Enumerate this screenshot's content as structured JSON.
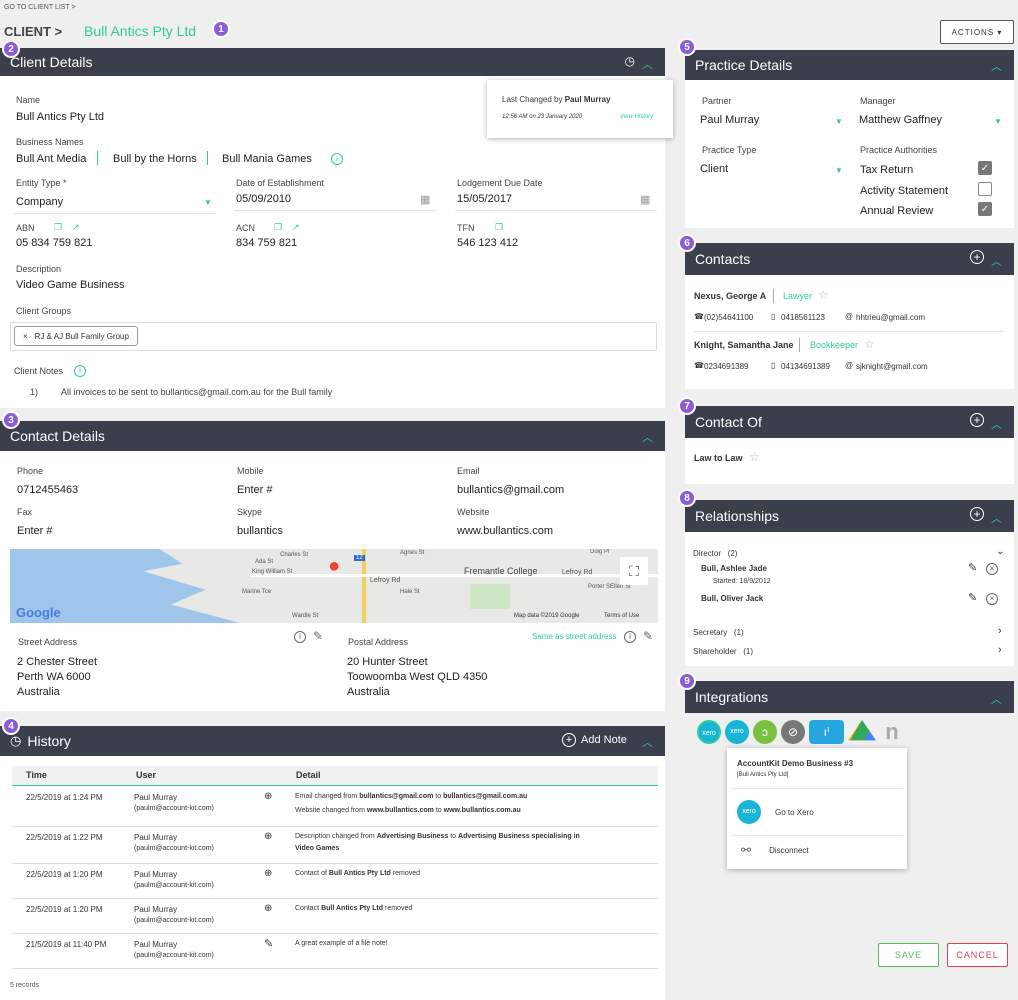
{
  "top": {
    "goto": "GO TO CLIENT LIST >",
    "client_label": "CLIENT >",
    "client_name": "Bull Antics Pty Ltd",
    "actions": "ACTIONS"
  },
  "badges": [
    "1",
    "2",
    "3",
    "4",
    "5",
    "6",
    "7",
    "8",
    "9"
  ],
  "client_details": {
    "title": "Client Details",
    "name_label": "Name",
    "name": "Bull Antics Pty Ltd",
    "business_names_label": "Business Names",
    "business_names": [
      "Bull Ant Media",
      "Bull by the Horns",
      "Bull Mania Games"
    ],
    "entity_type_label": "Entity Type *",
    "entity_type": "Company",
    "doe_label": "Date of Establishment",
    "doe": "05/09/2010",
    "ldd_label": "Lodgement Due Date",
    "ldd": "15/05/2017",
    "abn_label": "ABN",
    "abn": "05 834 759 821",
    "acn_label": "ACN",
    "acn": "834 759 821",
    "tfn_label": "TFN",
    "tfn": "546 123 412",
    "desc_label": "Description",
    "desc": "Video Game Business",
    "groups_label": "Client Groups",
    "group_tag": "RJ & AJ Bull Family Group",
    "notes_label": "Client Notes",
    "note_num": "1)",
    "note": "All invoices to be sent to bullantics@gmail.com.au for the Bull family",
    "popup": {
      "changed_prefix": "Last Changed by ",
      "changed_by": "Paul Murray",
      "time": "12:56 AM on 23 January 2020",
      "link": "View History"
    }
  },
  "contact_details": {
    "title": "Contact Details",
    "phone_label": "Phone",
    "phone": "0712455463",
    "mobile_label": "Mobile",
    "mobile": "Enter #",
    "email_label": "Email",
    "email": "bullantics@gmail.com",
    "fax_label": "Fax",
    "fax": "Enter #",
    "skype_label": "Skype",
    "skype": "bullantics",
    "website_label": "Website",
    "website": "www.bullantics.com",
    "map": {
      "streets": [
        "Charles St",
        "Ada St",
        "King William St",
        "Lefroy Rd",
        "Agnes St",
        "Fremantle College",
        "Lefroy Rd",
        "Doig Pl",
        "Wardle St",
        "Marine Tce",
        "Hale St",
        "Porter St",
        "Ellen St",
        "12"
      ],
      "google": "Google",
      "mapdata": "Map data ©2019 Google",
      "terms": "Terms of Use"
    },
    "street_label": "Street Address",
    "street": [
      "2 Chester Street",
      "Perth WA 6000",
      "Australia"
    ],
    "postal_label": "Postal Address",
    "same_as": "Same as street address",
    "postal": [
      "20 Hunter Street",
      "Toowoomba West QLD 4350",
      "Australia"
    ]
  },
  "history": {
    "title": "History",
    "add_note": "Add Note",
    "cols": [
      "Time",
      "User",
      "Detail"
    ],
    "rows": [
      {
        "time": "22/5/2019 at 1:24 PM",
        "user": "Paul Murray",
        "email": "(paulm@account-kit.com)",
        "d1a": "Email changed from ",
        "d1b": "bullantics@gmail.com",
        "d1c": " to ",
        "d1d": "bullantics@gmail.com.au",
        "d2a": "Website changed from ",
        "d2b": "www.bullantics.com",
        "d2c": " to ",
        "d2d": "www.bullantics.com.au"
      },
      {
        "time": "22/5/2019 at 1:22 PM",
        "user": "Paul Murray",
        "email": "(paulm@account-kit.com)",
        "d1a": "Description changed from ",
        "d1b": "Advertising Business",
        "d1c": " to ",
        "d1d": "Advertising Business specialising in",
        "d2a": "",
        "d2b": "Video Games",
        "d2c": "",
        "d2d": ""
      },
      {
        "time": "22/5/2019 at 1:20 PM",
        "user": "Paul Murray",
        "email": "(paulm@account-kit.com)",
        "d1a": "Contact of ",
        "d1b": "Bull Antics Pty Ltd",
        "d1c": " removed",
        "d1d": ""
      },
      {
        "time": "22/5/2019 at 1:20 PM",
        "user": "Paul Murray",
        "email": "(paulm@account-kit.com)",
        "d1a": "Contact ",
        "d1b": "Bull Antics Pty Ltd",
        "d1c": " removed",
        "d1d": ""
      },
      {
        "time": "21/5/2019 at 11:40 PM",
        "user": "Paul Murray",
        "email": "(paulm@account-kit.com)",
        "d1a": "A great example of a file note!",
        "d1b": "",
        "d1c": "",
        "d1d": ""
      }
    ],
    "records": "5 records"
  },
  "practice": {
    "title": "Practice Details",
    "partner_label": "Partner",
    "partner": "Paul Murray",
    "manager_label": "Manager",
    "manager": "Matthew Gaffney",
    "type_label": "Practice Type",
    "type": "Client",
    "auth_label": "Practice Authorities",
    "auths": [
      "Tax Return",
      "Activity Statement",
      "Annual Review"
    ]
  },
  "contacts": {
    "title": "Contacts",
    "items": [
      {
        "name": "Nexus, George A",
        "role": "Lawyer",
        "phone": "(02)54641100",
        "mobile": "0418561123",
        "email": "hhtrieu@gmail.com"
      },
      {
        "name": "Knight, Samantha Jane",
        "role": "Bookkeeper",
        "phone": "0234691389",
        "mobile": "04134691389",
        "email": "sjknight@gmail.com"
      }
    ]
  },
  "contact_of": {
    "title": "Contact Of",
    "item": "Law to Law"
  },
  "relationships": {
    "title": "Relationships",
    "director": "Director",
    "director_count": "(2)",
    "p1": "Bull, Ashlee Jade",
    "p1_started": "Started: 18/9/2012",
    "p2": "Bull, Oliver Jack",
    "secretary": "Secretary",
    "secretary_count": "(1)",
    "shareholder": "Shareholder",
    "shareholder_count": "(1)"
  },
  "integrations": {
    "title": "Integrations",
    "popup_title": "AccountKit Demo Business #3",
    "popup_sub": "[Bull Antics Pty Ltd]",
    "goto": "Go to Xero",
    "disconnect": "Disconnect",
    "xero": "xero"
  },
  "buttons": {
    "save": "SAVE",
    "cancel": "CANCEL"
  }
}
